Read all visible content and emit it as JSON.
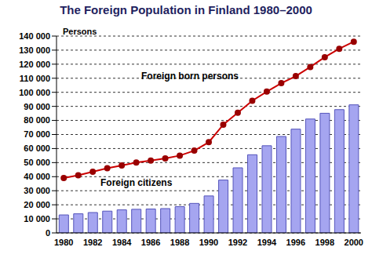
{
  "chart_data": {
    "type": "bar",
    "title": "The Foreign Population in Finland 1980–2000",
    "y_label": "Persons",
    "categories": [
      "1980",
      null,
      "1982",
      null,
      "1984",
      null,
      "1986",
      null,
      "1988",
      null,
      "1990",
      null,
      "1992",
      null,
      "1994",
      null,
      "1996",
      null,
      "1998",
      null,
      "2000"
    ],
    "series": [
      {
        "name": "Foreign born persons",
        "type": "line",
        "color": "#cc0000",
        "marker": "circle",
        "values": [
          39000,
          41000,
          43500,
          46000,
          48000,
          50000,
          51500,
          53000,
          55000,
          58500,
          64500,
          77000,
          85500,
          94000,
          100500,
          106500,
          111500,
          118000,
          125000,
          131000,
          136000
        ]
      },
      {
        "name": "Foreign citizens",
        "type": "bar",
        "color": "#a5a5f0",
        "values": [
          12800,
          13600,
          14500,
          15500,
          16400,
          16800,
          17000,
          17300,
          18700,
          21000,
          26300,
          37600,
          46300,
          55600,
          62000,
          68600,
          73800,
          81000,
          85100,
          87700,
          91100
        ]
      }
    ],
    "ylim": [
      0,
      140000
    ],
    "yticks": [
      0,
      {
        "value": 10000,
        "label": "10 000"
      },
      {
        "value": 20000,
        "label": "20 000"
      },
      {
        "value": 30000,
        "label": "30 000"
      },
      {
        "value": 40000,
        "label": "40 000"
      },
      {
        "value": 50000,
        "label": "50 000"
      },
      {
        "value": 60000,
        "label": "60 000"
      },
      {
        "value": 70000,
        "label": "70 000"
      },
      {
        "value": 80000,
        "label": "80 000"
      },
      {
        "value": 90000,
        "label": "90 000"
      },
      {
        "value": 100000,
        "label": "100 000"
      },
      {
        "value": 110000,
        "label": "110 000"
      },
      {
        "value": 120000,
        "label": "120 000"
      },
      {
        "value": 130000,
        "label": "130 000"
      },
      {
        "value": 140000,
        "label": "140 000"
      }
    ],
    "grid": true
  }
}
